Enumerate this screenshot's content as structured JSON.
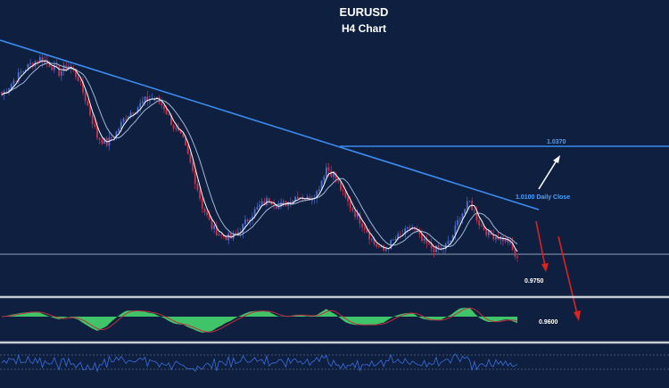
{
  "colors": {
    "background": "#0f1f3f",
    "trendline": "#3b8cf0",
    "resistance_line": "#3b8cf0",
    "support_line": "#8fa0b8",
    "bull_candle": "#4f6fd0",
    "bear_candle": "#d0304a",
    "ma_fast": "#ffffff",
    "ma_slow": "#9fb8d8",
    "oscillator_fill": "#3fc46a",
    "oscillator_line": "#c03040",
    "rsi_line": "#3b6fe0",
    "bearish_arrow": "#e02020",
    "bullish_arrow": "#ffffff",
    "text": "#ffffff",
    "accent_text": "#4aa3ff",
    "panel_divider": "#c8ccd4"
  },
  "icons": {
    "bullish": "up-right-arrow",
    "bearish": "down-arrow"
  },
  "chart_data": {
    "type": "candlestick",
    "title": "EURUSD",
    "subtitle": "H4 Chart",
    "symbol": "EURUSD",
    "timeframe": "H4",
    "grid": false,
    "price_levels": [
      {
        "label": "1.0370",
        "value": 1.037
      },
      {
        "label": "1.0100 Daily Close",
        "value": 1.01
      },
      {
        "label": "0.9750",
        "value": 0.975
      },
      {
        "label": "0.9600",
        "value": 0.96
      }
    ],
    "price_path": [
      [
        0,
        1.096
      ],
      [
        4,
        1.104
      ],
      [
        8,
        1.112
      ],
      [
        12,
        1.118
      ],
      [
        16,
        1.122
      ],
      [
        20,
        1.118
      ],
      [
        24,
        1.112
      ],
      [
        28,
        1.117
      ],
      [
        32,
        1.108
      ],
      [
        36,
        1.088
      ],
      [
        40,
        1.066
      ],
      [
        44,
        1.061
      ],
      [
        48,
        1.069
      ],
      [
        52,
        1.081
      ],
      [
        56,
        1.086
      ],
      [
        60,
        1.092
      ],
      [
        64,
        1.094
      ],
      [
        68,
        1.087
      ],
      [
        72,
        1.073
      ],
      [
        76,
        1.063
      ],
      [
        80,
        1.041
      ],
      [
        84,
        1.016
      ],
      [
        88,
        1.001
      ],
      [
        92,
        0.995
      ],
      [
        96,
        0.993
      ],
      [
        100,
        0.999
      ],
      [
        104,
        1.009
      ],
      [
        108,
        1.016
      ],
      [
        112,
        1.021
      ],
      [
        116,
        1.016
      ],
      [
        120,
        1.019
      ],
      [
        124,
        1.024
      ],
      [
        128,
        1.021
      ],
      [
        132,
        1.026
      ],
      [
        136,
        1.044
      ],
      [
        140,
        1.036
      ],
      [
        144,
        1.021
      ],
      [
        148,
        1.011
      ],
      [
        152,
        1.001
      ],
      [
        156,
        0.989
      ],
      [
        160,
        0.984
      ],
      [
        164,
        0.991
      ],
      [
        168,
        0.996
      ],
      [
        172,
        1.001
      ],
      [
        176,
        0.991
      ],
      [
        180,
        0.986
      ],
      [
        184,
        0.984
      ],
      [
        188,
        0.991
      ],
      [
        192,
        1.009
      ],
      [
        196,
        1.019
      ],
      [
        200,
        1.004
      ],
      [
        204,
        0.996
      ],
      [
        208,
        0.994
      ],
      [
        212,
        0.991
      ],
      [
        216,
        0.977
      ]
    ],
    "bars_total": 217
  },
  "trend_signals": [
    {
      "label": "bullish-scenario",
      "icon": "up-right-arrow"
    },
    {
      "label": "bearish-scenario-near",
      "icon": "down-arrow"
    },
    {
      "label": "bearish-scenario-far",
      "icon": "down-arrow"
    }
  ],
  "indicators": [
    {
      "name": "oscillator",
      "style": "histogram"
    },
    {
      "name": "rsi",
      "style": "line"
    }
  ]
}
